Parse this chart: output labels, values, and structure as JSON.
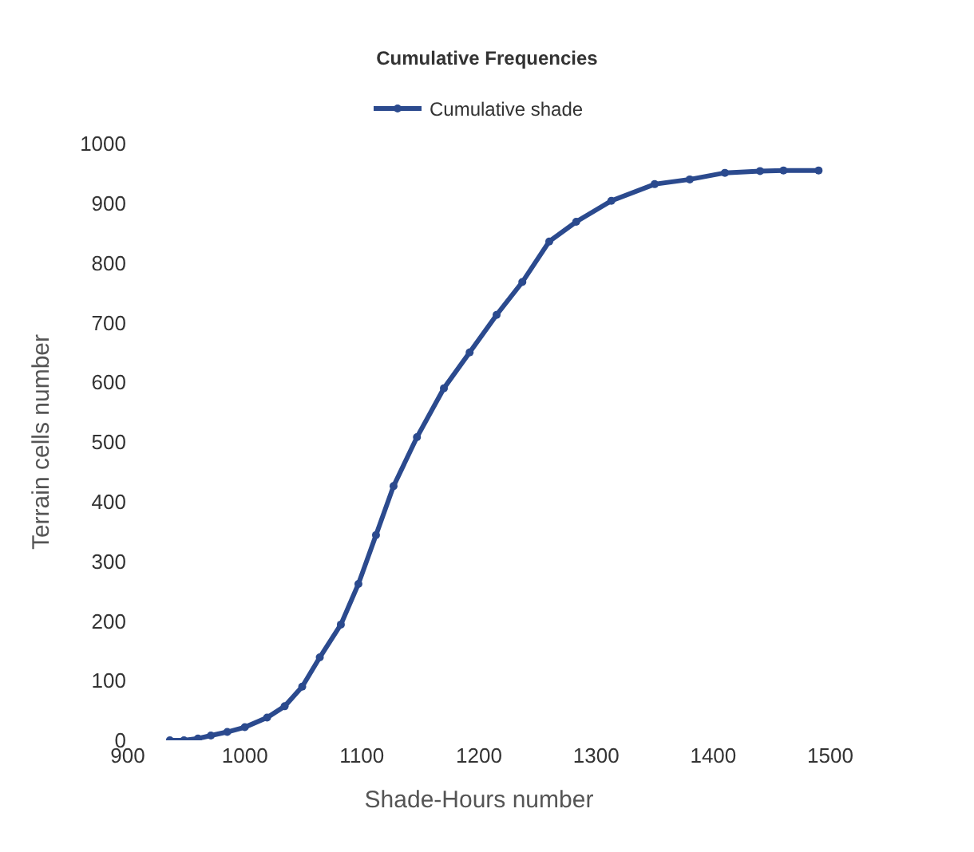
{
  "chart_data": {
    "type": "line",
    "title": "Cumulative Frequencies",
    "xlabel": "Shade-Hours number",
    "ylabel": "Terrain cells number",
    "x": [
      936,
      948,
      960,
      971,
      985,
      1000,
      1019,
      1034,
      1049,
      1064,
      1082,
      1097,
      1112,
      1127,
      1147,
      1170,
      1192,
      1215,
      1237,
      1260,
      1283,
      1313,
      1350,
      1380,
      1410,
      1440,
      1460,
      1490
    ],
    "series": [
      {
        "name": "Cumulative shade",
        "color": "#2b4a8e",
        "values": [
          0,
          0,
          3,
          8,
          14,
          22,
          38,
          57,
          90,
          139,
          194,
          262,
          344,
          426,
          508,
          590,
          650,
          713,
          768,
          836,
          869,
          904,
          932,
          940,
          951,
          954,
          955,
          955
        ]
      }
    ],
    "xlim": [
      900,
      1500
    ],
    "xticks": [
      900,
      1000,
      1100,
      1200,
      1300,
      1400,
      1500
    ],
    "ylim": [
      0,
      1000
    ],
    "yticks": [
      0,
      100,
      200,
      300,
      400,
      500,
      600,
      700,
      800,
      900,
      1000
    ],
    "legend": "top",
    "marker": "circle",
    "line_style": "solid"
  }
}
